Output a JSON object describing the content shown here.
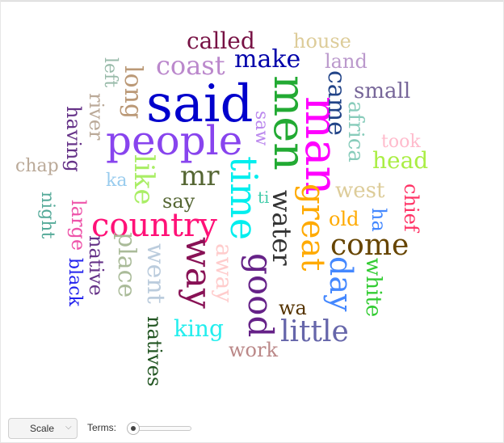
{
  "word_cloud": {
    "words": [
      {
        "text": "said",
        "color": "#0000cc"
      },
      {
        "text": "men",
        "color": "#22aa33"
      },
      {
        "text": "man",
        "color": "#ff00ff"
      },
      {
        "text": "people",
        "color": "#8844ee"
      },
      {
        "text": "time",
        "color": "#00eeee"
      },
      {
        "text": "country",
        "color": "#ff1177"
      },
      {
        "text": "way",
        "color": "#881155"
      },
      {
        "text": "good",
        "color": "#662288"
      },
      {
        "text": "great",
        "color": "#ffaa00"
      },
      {
        "text": "water",
        "color": "#333333"
      },
      {
        "text": "come",
        "color": "#664400"
      },
      {
        "text": "day",
        "color": "#4488ff"
      },
      {
        "text": "little",
        "color": "#6666aa"
      },
      {
        "text": "mr",
        "color": "#556633"
      },
      {
        "text": "like",
        "color": "#aaee66"
      },
      {
        "text": "coast",
        "color": "#bb88cc"
      },
      {
        "text": "make",
        "color": "#0000aa"
      },
      {
        "text": "came",
        "color": "#224488"
      },
      {
        "text": "long",
        "color": "#bb9977"
      },
      {
        "text": "place",
        "color": "#aabb99"
      },
      {
        "text": "went",
        "color": "#bbccdd"
      },
      {
        "text": "king",
        "color": "#22eeee"
      },
      {
        "text": "away",
        "color": "#ffcccc"
      },
      {
        "text": "work",
        "color": "#bb8888"
      },
      {
        "text": "africa",
        "color": "#88ccbb"
      },
      {
        "text": "west",
        "color": "#ddcc99"
      },
      {
        "text": "head",
        "color": "#aaee44"
      },
      {
        "text": "white",
        "color": "#33cc33"
      },
      {
        "text": "called",
        "color": "#771144"
      },
      {
        "text": "house",
        "color": "#ddcc99"
      },
      {
        "text": "land",
        "color": "#bb99cc"
      },
      {
        "text": "small",
        "color": "#776699"
      },
      {
        "text": "took",
        "color": "#ffbbcc"
      },
      {
        "text": "chief",
        "color": "#ff3366"
      },
      {
        "text": "old",
        "color": "#ffaa00"
      },
      {
        "text": "ha",
        "color": "#4488ff"
      },
      {
        "text": "wa",
        "color": "#553300"
      },
      {
        "text": "natives",
        "color": "#225522"
      },
      {
        "text": "native",
        "color": "#663388"
      },
      {
        "text": "black",
        "color": "#2222ee"
      },
      {
        "text": "large",
        "color": "#ee55aa"
      },
      {
        "text": "having",
        "color": "#663388"
      },
      {
        "text": "river",
        "color": "#bbaa99"
      },
      {
        "text": "left",
        "color": "#99bbaa"
      },
      {
        "text": "chap",
        "color": "#bbaa99"
      },
      {
        "text": "night",
        "color": "#55aa99"
      },
      {
        "text": "saw",
        "color": "#bb88ee"
      },
      {
        "text": "say",
        "color": "#556633"
      },
      {
        "text": "ka",
        "color": "#99ccee"
      },
      {
        "text": "ti",
        "color": "#44ccaa"
      }
    ]
  },
  "controls": {
    "scale_label": "Scale",
    "scale_caret": "⌵",
    "terms_label": "Terms:"
  },
  "terms_slider_fraction": 0.0
}
